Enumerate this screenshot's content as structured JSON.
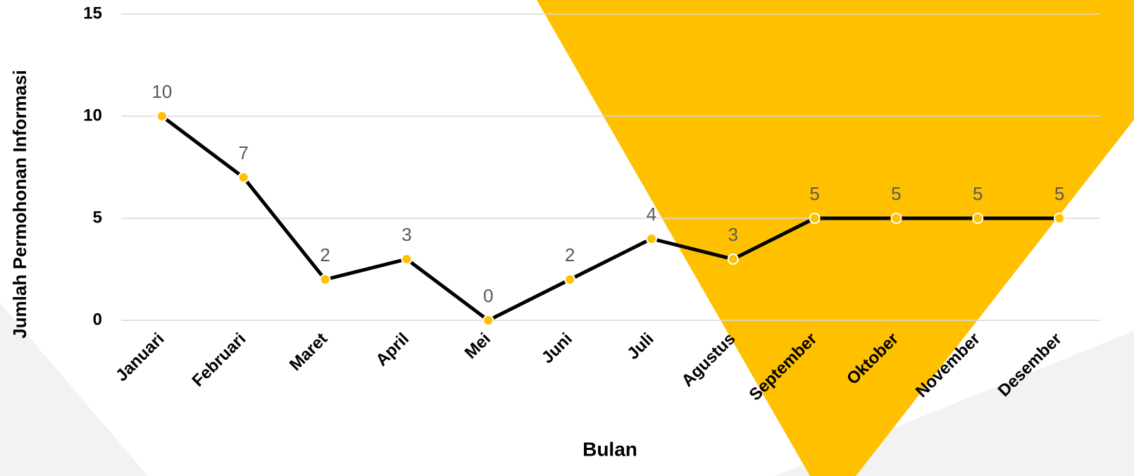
{
  "chart_data": {
    "type": "line",
    "categories": [
      "Januari",
      "Februari",
      "Maret",
      "April",
      "Mei",
      "Juni",
      "Juli",
      "Agustus",
      "September",
      "Oktober",
      "November",
      "Desember"
    ],
    "values": [
      10,
      7,
      2,
      3,
      0,
      2,
      4,
      3,
      5,
      5,
      5,
      5
    ],
    "color": "#000000",
    "marker_color": "#FFC000",
    "xlabel": "Bulan",
    "ylabel": "Jumlah Permohonan Informasi",
    "ylim": [
      0,
      15
    ],
    "yticks": [
      0,
      5,
      10,
      15
    ],
    "grid": true
  }
}
